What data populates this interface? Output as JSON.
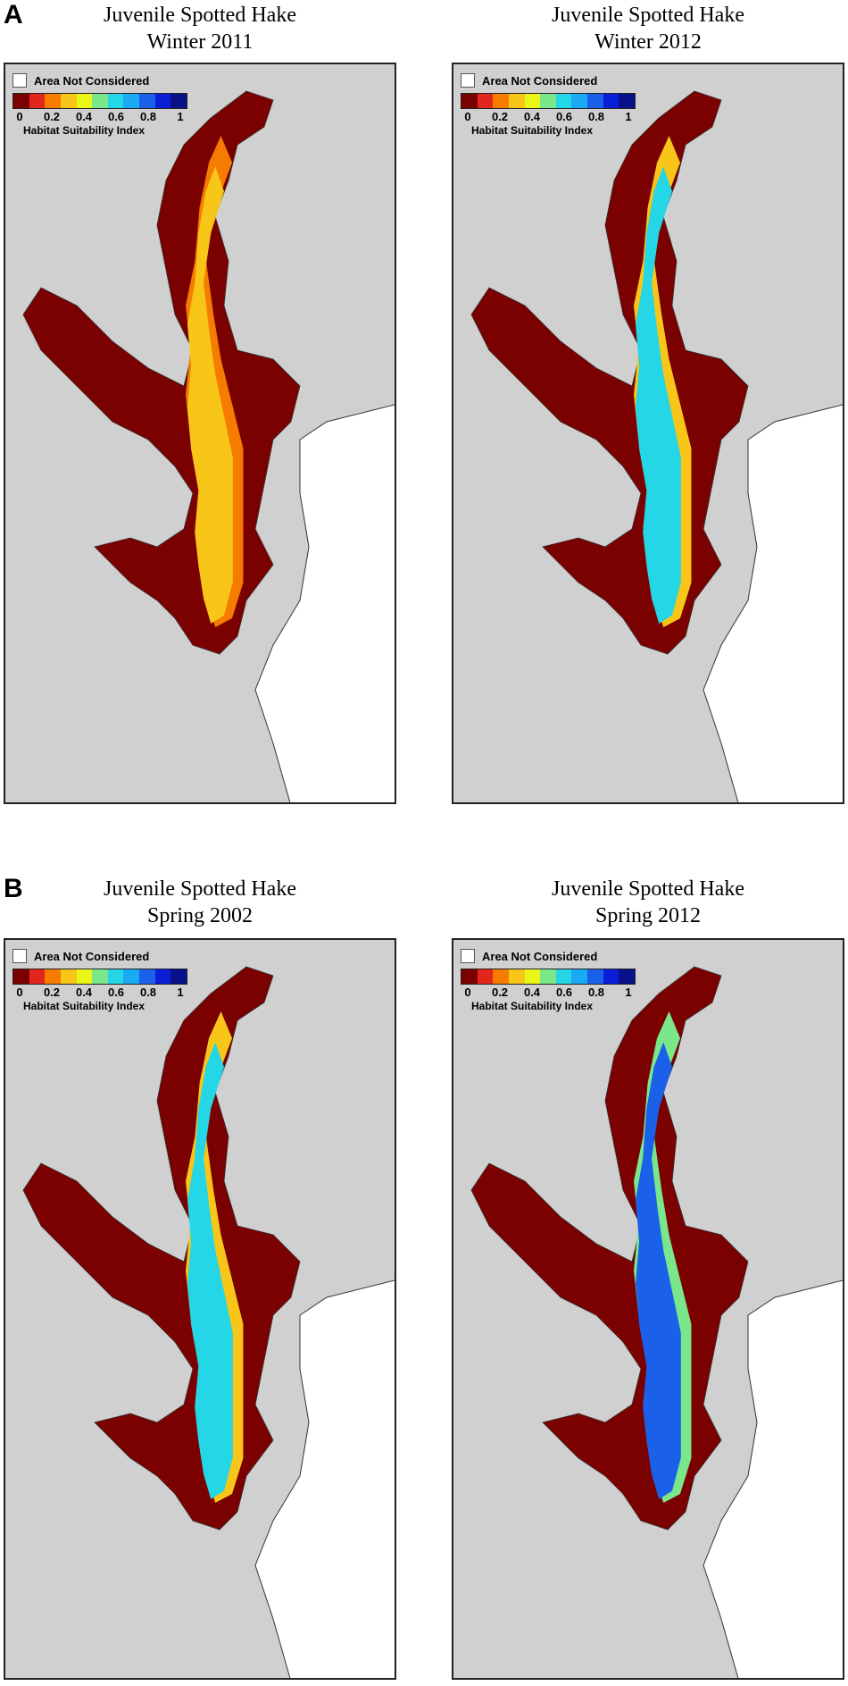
{
  "panels": [
    {
      "letter": "A"
    },
    {
      "letter": "B"
    }
  ],
  "legend": {
    "not_considered_label": "Area Not Considered",
    "scale_title": "Habitat Suitability Index",
    "ticks": [
      "0",
      "0.2",
      "0.4",
      "0.6",
      "0.8",
      "1"
    ],
    "tick_values": [
      0,
      0.2,
      0.4,
      0.6,
      0.8,
      1
    ],
    "colors": [
      "#7b0000",
      "#e3261c",
      "#f57c00",
      "#f7c619",
      "#e8f716",
      "#7ae88a",
      "#25d6e6",
      "#1aa9f3",
      "#1a60e8",
      "#0b1fd6",
      "#08108a"
    ]
  },
  "maps": [
    {
      "title_line1": "Juvenile Spotted Hake",
      "title_line2": "Winter 2011",
      "hsi_level": 0.3
    },
    {
      "title_line1": "Juvenile Spotted Hake",
      "title_line2": "Winter 2012",
      "hsi_level": 0.55
    },
    {
      "title_line1": "Juvenile Spotted Hake",
      "title_line2": "Spring 2002",
      "hsi_level": 0.55
    },
    {
      "title_line1": "Juvenile Spotted Hake",
      "title_line2": "Spring 2012",
      "hsi_level": 0.75
    }
  ],
  "colors": {
    "land": "#d0d0d0",
    "shore": "#7b0000",
    "not_considered": "#ffffff"
  }
}
